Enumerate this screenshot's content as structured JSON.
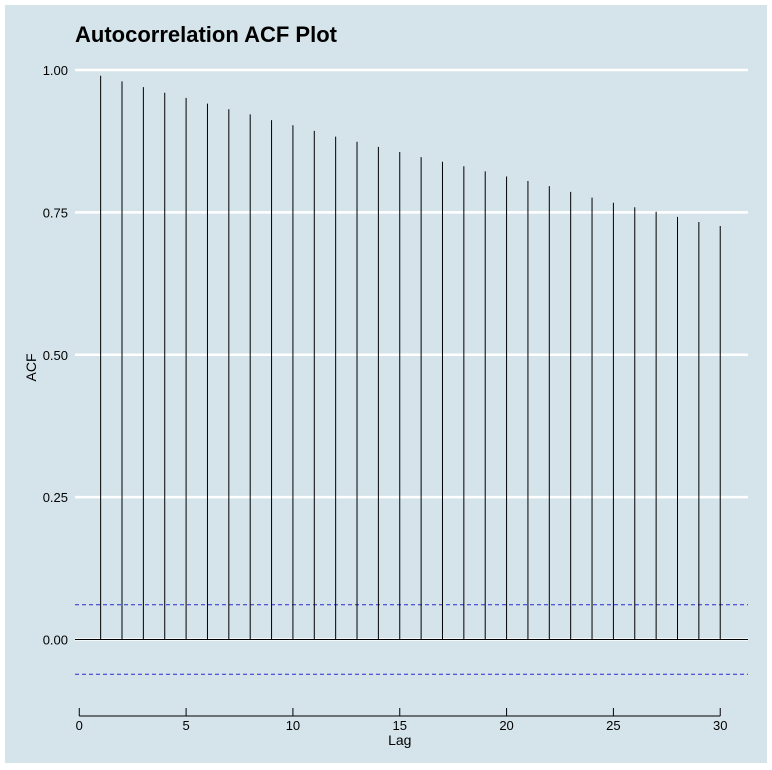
{
  "chart_data": {
    "type": "bar",
    "title": "Autocorrelation ACF Plot",
    "xlabel": "Lag",
    "ylabel": "ACF",
    "x": [
      1,
      2,
      3,
      4,
      5,
      6,
      7,
      8,
      9,
      10,
      11,
      12,
      13,
      14,
      15,
      16,
      17,
      18,
      19,
      20,
      21,
      22,
      23,
      24,
      25,
      26,
      27,
      28,
      29,
      30
    ],
    "values": [
      0.99,
      0.98,
      0.97,
      0.96,
      0.951,
      0.941,
      0.931,
      0.922,
      0.912,
      0.903,
      0.893,
      0.883,
      0.874,
      0.865,
      0.856,
      0.847,
      0.839,
      0.831,
      0.822,
      0.813,
      0.805,
      0.796,
      0.786,
      0.776,
      0.767,
      0.759,
      0.751,
      0.742,
      0.733,
      0.726
    ],
    "confidence_bounds": [
      0.061,
      -0.061
    ],
    "xlim": [
      -0.2,
      31.3
    ],
    "ylim": [
      -0.115,
      1.0
    ],
    "x_ticks": [
      0,
      5,
      10,
      15,
      20,
      25,
      30
    ],
    "y_ticks": [
      0.0,
      0.25,
      0.5,
      0.75,
      1.0
    ],
    "y_tick_labels": [
      "0.00",
      "0.25",
      "0.50",
      "0.75",
      "1.00"
    ],
    "grid": "horizontal",
    "colors": {
      "background": "#d5e4eb",
      "grid": "#ffffff",
      "bars": "#000000",
      "bounds": "#2a2acc"
    }
  }
}
